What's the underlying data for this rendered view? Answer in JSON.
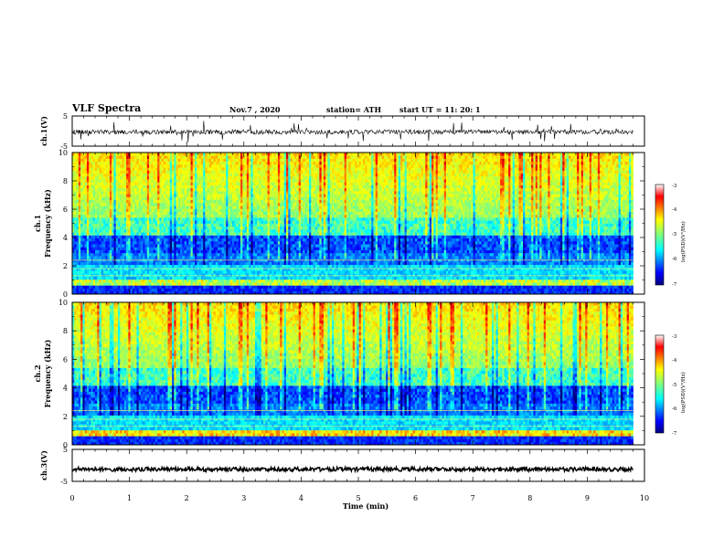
{
  "header": {
    "title": "VLF Spectra",
    "date": "Nov.7  , 2020",
    "station": "station= ATH",
    "start": "start  UT =   11: 20: 1"
  },
  "colors": {
    "spectrum": [
      "#00007f",
      "#0000ff",
      "#007fff",
      "#00ffff",
      "#7fff7f",
      "#ffff00",
      "#ff7f00",
      "#ff0000",
      "#7f0000"
    ],
    "trace": "#000000"
  },
  "chart_data": [
    {
      "type": "line",
      "ylabel": "ch.1(V)",
      "ylim": [
        -5,
        5
      ],
      "yticks": [
        "5",
        "-5"
      ],
      "xlim": [
        0,
        10
      ],
      "description_level": -0.3
    },
    {
      "type": "heatmap",
      "ylabel": "ch.1\nFrequency  (kHz)",
      "ylim": [
        0,
        10
      ],
      "yticks": [
        "0",
        "2",
        "4",
        "6",
        "8",
        "10"
      ],
      "xlim": [
        0,
        10
      ],
      "data_extent_x": [
        0,
        9.8
      ],
      "colorbar": {
        "label": "log(PSD)(V²/Hz)",
        "range": [
          -7,
          -3
        ],
        "ticks": [
          "-3",
          "-4",
          "-5",
          "-6",
          "-7"
        ]
      }
    },
    {
      "type": "heatmap",
      "ylabel": "ch.2\nFrequency  (kHz)",
      "ylim": [
        0,
        10
      ],
      "yticks": [
        "0",
        "2",
        "4",
        "6",
        "8",
        "10"
      ],
      "xlim": [
        0,
        10
      ],
      "data_extent_x": [
        0,
        9.8
      ],
      "colorbar": {
        "label": "log(PSD)(V²/Hz)",
        "range": [
          -7,
          -3
        ],
        "ticks": [
          "-3",
          "-4",
          "-5",
          "-6",
          "-7"
        ]
      }
    },
    {
      "type": "line",
      "ylabel": "ch.3(V)",
      "ylim": [
        -5,
        5
      ],
      "yticks": [
        "5",
        "-5"
      ],
      "xlim": [
        0,
        10
      ],
      "xlabel": "Time  (min)",
      "xticks": [
        "0",
        "1",
        "2",
        "3",
        "4",
        "5",
        "6",
        "7",
        "8",
        "9",
        "10"
      ],
      "description_level": -1.2
    }
  ]
}
